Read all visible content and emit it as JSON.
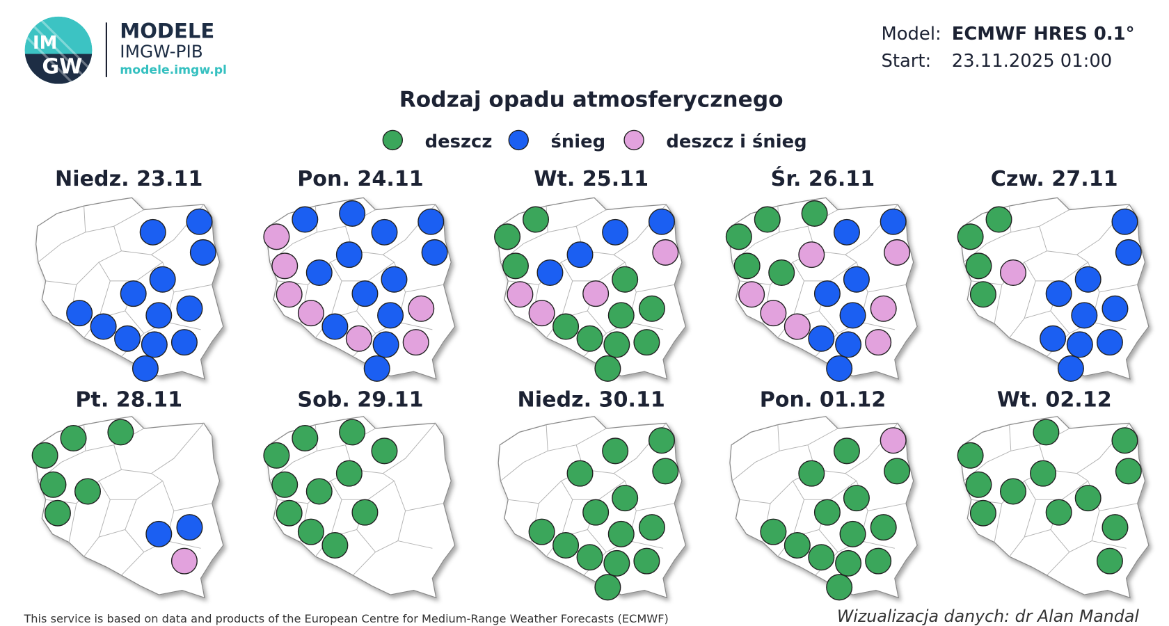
{
  "header": {
    "logo": [
      "IM",
      "GW"
    ],
    "brand": "MODELE",
    "brand_sub": "IMGW-PIB",
    "url": "modele.imgw.pl",
    "model_label": "Model:",
    "model": "ECMWF HRES 0.1°",
    "start_label": "Start:",
    "start": "23.11.2025 01:00"
  },
  "title": "Rodzaj opadu atmosferycznego",
  "legend": [
    {
      "label": "deszcz",
      "color": "#3ba65b"
    },
    {
      "label": "śnieg",
      "color": "#1b5ff2"
    },
    {
      "label": "deszcz i śnieg",
      "color": "#e2a2dd"
    }
  ],
  "panels": [
    {
      "title": "Niedz. 23.11",
      "cities": [
        null,
        null,
        null,
        "śnieg",
        "śnieg",
        "śnieg",
        null,
        null,
        null,
        "śnieg",
        null,
        "śnieg",
        "śnieg",
        "śnieg",
        "śnieg",
        "śnieg",
        "śnieg",
        "śnieg",
        "śnieg",
        "śnieg"
      ]
    },
    {
      "title": "Pon. 24.11",
      "cities": [
        "deszcz i śnieg",
        "śnieg",
        "śnieg",
        "śnieg",
        "śnieg",
        "śnieg",
        "deszcz i śnieg",
        "śnieg",
        "śnieg",
        "śnieg",
        "deszcz i śnieg",
        "śnieg",
        "deszcz i śnieg",
        "śnieg",
        "śnieg",
        "deszcz i śnieg",
        "deszcz i śnieg",
        "śnieg",
        "deszcz i śnieg",
        "śnieg"
      ]
    },
    {
      "title": "Wt. 25.11",
      "cities": [
        "deszcz",
        "deszcz",
        null,
        "śnieg",
        "śnieg",
        "deszcz i śnieg",
        "deszcz",
        "śnieg",
        "śnieg",
        "deszcz",
        "deszcz i śnieg",
        "deszcz i śnieg",
        "deszcz i śnieg",
        "deszcz",
        "deszcz",
        "deszcz",
        "deszcz",
        "deszcz",
        "deszcz",
        "deszcz"
      ]
    },
    {
      "title": "Śr. 26.11",
      "cities": [
        "deszcz",
        "deszcz",
        "deszcz",
        "śnieg",
        "śnieg",
        "deszcz i śnieg",
        "deszcz",
        "deszcz i śnieg",
        "deszcz",
        "śnieg",
        "deszcz i śnieg",
        "śnieg",
        "deszcz i śnieg",
        "deszcz i śnieg",
        "śnieg",
        "deszcz i śnieg",
        "śnieg",
        "śnieg",
        "deszcz i śnieg",
        "śnieg"
      ]
    },
    {
      "title": "Czw. 27.11",
      "cities": [
        "deszcz",
        "deszcz",
        null,
        null,
        "śnieg",
        "śnieg",
        "deszcz",
        null,
        "deszcz i śnieg",
        "śnieg",
        "deszcz",
        "śnieg",
        null,
        null,
        "śnieg",
        "śnieg",
        "śnieg",
        "śnieg",
        "śnieg",
        "śnieg"
      ]
    },
    {
      "title": "Pt. 28.11",
      "cities": [
        "deszcz",
        "deszcz",
        "deszcz",
        null,
        null,
        null,
        "deszcz",
        null,
        "deszcz",
        null,
        "deszcz",
        null,
        null,
        null,
        "śnieg",
        "śnieg",
        null,
        null,
        "deszcz i śnieg",
        null
      ]
    },
    {
      "title": "Sob. 29.11",
      "cities": [
        "deszcz",
        "deszcz",
        "deszcz",
        "deszcz",
        null,
        null,
        "deszcz",
        "deszcz",
        "deszcz",
        null,
        "deszcz",
        "deszcz",
        "deszcz",
        "deszcz",
        null,
        null,
        null,
        null,
        null,
        null
      ]
    },
    {
      "title": "Niedz. 30.11",
      "cities": [
        null,
        null,
        null,
        "deszcz",
        "deszcz",
        "deszcz",
        null,
        "deszcz",
        null,
        "deszcz",
        null,
        "deszcz",
        "deszcz",
        "deszcz",
        "deszcz",
        "deszcz",
        "deszcz",
        "deszcz",
        "deszcz",
        "deszcz"
      ]
    },
    {
      "title": "Pon. 01.12",
      "cities": [
        null,
        null,
        null,
        "deszcz",
        "deszcz i śnieg",
        "deszcz",
        null,
        "deszcz",
        null,
        "deszcz",
        null,
        "deszcz",
        "deszcz",
        "deszcz",
        "deszcz",
        "deszcz",
        "deszcz",
        "deszcz",
        "deszcz",
        "deszcz"
      ]
    },
    {
      "title": "Wt. 02.12",
      "cities": [
        "deszcz",
        null,
        "deszcz",
        null,
        "deszcz",
        "deszcz",
        "deszcz",
        "deszcz",
        "deszcz",
        "deszcz",
        "deszcz",
        "deszcz",
        null,
        null,
        null,
        "deszcz",
        null,
        null,
        "deszcz",
        null
      ]
    }
  ],
  "footer": {
    "source": "This service is based on data and products of the European Centre for Medium-Range Weather Forecasts (ECMWF)",
    "credit": "Wizualizacja danych: dr Alan Mandal"
  }
}
